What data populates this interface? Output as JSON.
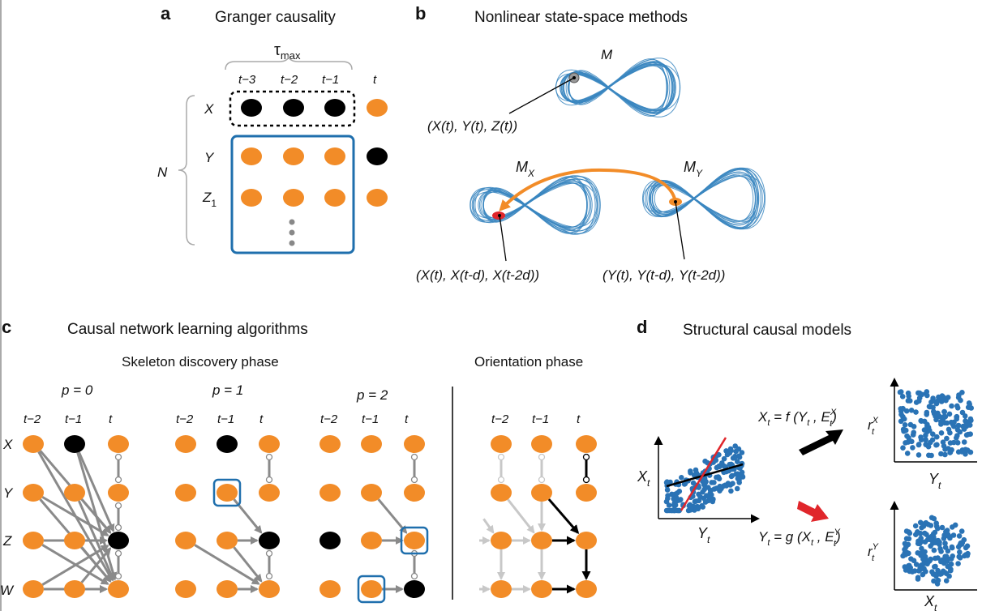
{
  "colors": {
    "orange": "#f28c28",
    "black": "#000000",
    "blue": "#1f6fad",
    "gray": "#8a8a8a",
    "lightgray": "#c8c8c8",
    "red": "#e0262b"
  },
  "panel_a": {
    "letter": "a",
    "title": "Granger causality",
    "tau": "τ",
    "tau_sub": "max",
    "time_labels": [
      "t−3",
      "t−2",
      "t−1",
      "t"
    ],
    "var_labels": [
      "X",
      "Y",
      "Z",
      "1"
    ],
    "n_label": "N"
  },
  "panel_b": {
    "letter": "b",
    "title": "Nonlinear state-space methods",
    "m_label": "M",
    "mx_label": "M",
    "mx_sub": "X",
    "my_label": "M",
    "my_sub": "Y",
    "point_label": "(X(t),  Y(t),  Z(t))",
    "x_embed_label": "(X(t),  X(t-d),  X(t-2d))",
    "y_embed_label": "(Y(t),  Y(t-d),  Y(t-2d))"
  },
  "panel_c": {
    "letter": "c",
    "title": "Causal network learning algorithms",
    "skeleton_title": "Skeleton discovery phase",
    "orientation_title": "Orientation phase",
    "p_labels": [
      "p = 0",
      "p = 1",
      "p = 2"
    ],
    "time_labels": [
      "t−2",
      "t−1",
      "t"
    ],
    "var_labels": [
      "X",
      "Y",
      "Z",
      "W"
    ]
  },
  "panel_d": {
    "letter": "d",
    "title": "Structural causal models",
    "xt_axis": "X",
    "yt_axis": "Y",
    "t_sub": "t",
    "formula_f": "X = f (Y , E )",
    "formula_g": "Y = g (X , E )",
    "r_x": "r",
    "r_y": "r"
  }
}
